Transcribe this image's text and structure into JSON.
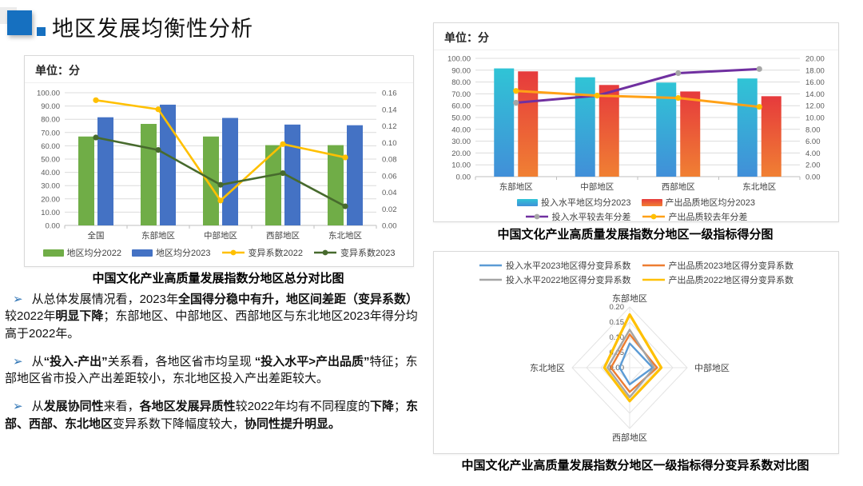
{
  "title": "地区发展均衡性分析",
  "colors": {
    "accent": "#1670C0",
    "bullet_arrow": "#2E74B5",
    "grid": "#dcdcdc",
    "axis_text": "#595959"
  },
  "panels": {
    "left": {
      "unit": "单位：分",
      "caption": "中国文化产业高质量发展指数分地区总分对比图"
    },
    "right_top": {
      "unit": "单位：分",
      "caption": "中国文化产业高质量发展指数分地区一级指标得分图"
    },
    "right_bottom": {
      "caption": "中国文化产业高质量发展指数分地区一级指标得分变异系数对比图"
    }
  },
  "bullets": [
    {
      "marker": "➢",
      "segments": [
        {
          "t": "从总体发展情况看，2023年"
        },
        {
          "t": "全国得分稳中有升",
          "b": true
        },
        {
          "t": "，",
          "b": true
        },
        {
          "t": "地区间差距（变异系数）",
          "b": true
        },
        {
          "t": "较2022年"
        },
        {
          "t": "明显下降",
          "b": true
        },
        {
          "t": "；东部地区、中部地区、西部地区与东北地区2023年得分均高于2022年。"
        }
      ]
    },
    {
      "marker": "➢",
      "segments": [
        {
          "t": "从"
        },
        {
          "t": "“投入-产出”",
          "b": true
        },
        {
          "t": "关系看，各地区省市均呈现 "
        },
        {
          "t": "“投入水平>产出品质”",
          "b": true
        },
        {
          "t": "特征；东部地区省市投入产出差距较小，东北地区投入产出差距较大。"
        }
      ]
    },
    {
      "marker": "➢",
      "segments": [
        {
          "t": "从"
        },
        {
          "t": "发展协同性",
          "b": true
        },
        {
          "t": "来看，"
        },
        {
          "t": "各地区发展异质性",
          "b": true
        },
        {
          "t": "较2022年均有不同程度的"
        },
        {
          "t": "下降",
          "b": true
        },
        {
          "t": "；"
        },
        {
          "t": "东部、西部、东北地区",
          "b": true
        },
        {
          "t": "变异系数下降幅度较大，"
        },
        {
          "t": "协同性提升明显。",
          "b": true
        }
      ]
    }
  ],
  "chart_data": [
    {
      "type": "bar",
      "title": "中国文化产业高质量发展指数分地区总分对比图",
      "unit": "单位：分",
      "categories": [
        "全国",
        "东部地区",
        "中部地区",
        "西部地区",
        "东北地区"
      ],
      "left_axis": {
        "min": 0,
        "max": 100,
        "step": 10,
        "decimals": 2
      },
      "right_axis": {
        "min": 0,
        "max": 0.16,
        "step": 0.02,
        "decimals": 2
      },
      "legend_position": "bottom",
      "grid": true,
      "series": [
        {
          "name": "地区均分2022",
          "type": "bar",
          "color": "#70AD47",
          "values": [
            67,
            76.5,
            67,
            60.5,
            60.5
          ]
        },
        {
          "name": "地区均分2023",
          "type": "bar",
          "color": "#4472C4",
          "values": [
            81.5,
            91,
            81,
            76,
            75.5
          ]
        },
        {
          "name": "变异系数2022",
          "type": "line",
          "axis": "right",
          "color": "#FFC000",
          "marker": "#FFC000",
          "values": [
            0.151,
            0.14,
            0.03,
            0.098,
            0.082
          ]
        },
        {
          "name": "变异系数2023",
          "type": "line",
          "axis": "right",
          "color": "#476A2D",
          "marker": "#476A2D",
          "values": [
            0.106,
            0.091,
            0.049,
            0.063,
            0.023
          ]
        }
      ]
    },
    {
      "type": "bar",
      "title": "中国文化产业高质量发展指数分地区一级指标得分图",
      "unit": "单位：分",
      "categories": [
        "东部地区",
        "中部地区",
        "西部地区",
        "东北地区"
      ],
      "left_axis": {
        "min": 0,
        "max": 100,
        "step": 10,
        "decimals": 2
      },
      "right_axis": {
        "min": 0,
        "max": 20,
        "step": 2,
        "decimals": 2
      },
      "legend_position": "bottom",
      "grid": true,
      "series": [
        {
          "name": "投入水平地区均分2023",
          "type": "bar",
          "gradient": [
            "#30C4D6",
            "#418FD8"
          ],
          "values": [
            91.5,
            84,
            79.5,
            83
          ]
        },
        {
          "name": "产出品质地区均分2023",
          "type": "bar",
          "gradient": [
            "#E63A3C",
            "#F08033"
          ],
          "values": [
            89,
            77.5,
            72,
            68
          ]
        },
        {
          "name": "投入水平较去年分差",
          "type": "line",
          "axis": "right",
          "color": "#7030A0",
          "marker": "#A6A6A6",
          "values": [
            12.5,
            13.7,
            17.5,
            18.2
          ]
        },
        {
          "name": "产出品质较去年分差",
          "type": "line",
          "axis": "right",
          "color": "#FFA117",
          "marker": "#FFC000",
          "values": [
            14.5,
            13.7,
            13.3,
            11.8
          ]
        }
      ]
    },
    {
      "type": "radar",
      "title": "中国文化产业高质量发展指数分地区一级指标得分变异系数对比图",
      "categories": [
        "东部地区",
        "中部地区",
        "西部地区",
        "东北地区"
      ],
      "max": 0.2,
      "step": 0.05,
      "tick_decimals": 2,
      "legend_position": "top",
      "series": [
        {
          "name": "投入水平2023地区得分变异系数",
          "color": "#5B9BD5",
          "values": [
            0.08,
            0.08,
            0.055,
            0.035
          ]
        },
        {
          "name": "产出品质2023地区得分变异系数",
          "color": "#ED7D31",
          "values": [
            0.11,
            0.095,
            0.08,
            0.065
          ]
        },
        {
          "name": "投入水平2022地区得分变异系数",
          "color": "#A5A5A5",
          "values": [
            0.125,
            0.085,
            0.097,
            0.077
          ]
        },
        {
          "name": "产出品质2022地区得分变异系数",
          "color": "#FFC000",
          "values": [
            0.175,
            0.11,
            0.11,
            0.088
          ]
        }
      ]
    }
  ]
}
